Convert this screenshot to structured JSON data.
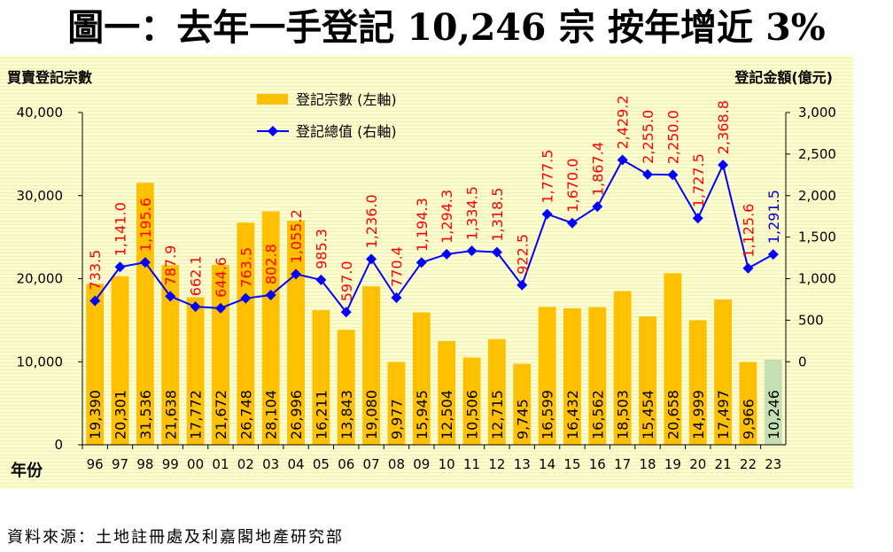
{
  "title": "圖一：去年一手登記 10,246 宗  按年增近 3%",
  "source": "資料來源：土地註冊處及利嘉閣地產研究部",
  "chart_data": {
    "type": "bar",
    "title": "圖一：去年一手登記 10,246 宗  按年增近 3%",
    "ylabel": "買賣登記宗數",
    "y2label": "登記金額(億元)",
    "xlabel": "年份",
    "categories": [
      "96",
      "97",
      "98",
      "99",
      "00",
      "01",
      "02",
      "03",
      "04",
      "05",
      "06",
      "07",
      "08",
      "09",
      "10",
      "11",
      "12",
      "13",
      "14",
      "15",
      "16",
      "17",
      "18",
      "19",
      "20",
      "21",
      "22",
      "23"
    ],
    "ylim": [
      0,
      40000
    ],
    "y2lim": [
      -1000,
      3000
    ],
    "yticks": [
      "0",
      "10,000",
      "20,000",
      "30,000",
      "40,000"
    ],
    "y2ticks": [
      "0",
      "500",
      "1,000",
      "1,500",
      "2,000",
      "2,500",
      "3,000"
    ],
    "legend_position": "top-center",
    "series": [
      {
        "name": "登記宗數 (左軸)",
        "axis": "left",
        "kind": "bar",
        "color": "#ffc000",
        "highlight_color": "#c6dfb2",
        "values": [
          19390,
          20301,
          31536,
          21638,
          17772,
          21672,
          26748,
          28104,
          26996,
          16211,
          13843,
          19080,
          9977,
          15945,
          12504,
          10506,
          12715,
          9745,
          16599,
          16432,
          16562,
          18503,
          15454,
          20658,
          14999,
          17497,
          9966,
          10246
        ],
        "labels": [
          "19,390",
          "20,301",
          "31,536",
          "21,638",
          "17,772",
          "21,672",
          "26,748",
          "28,104",
          "26,996",
          "16,211",
          "13,843",
          "19,080",
          "9,977",
          "15,945",
          "12,504",
          "10,506",
          "12,715",
          "9,745",
          "16,599",
          "16,432",
          "16,562",
          "18,503",
          "15,454",
          "20,658",
          "14,999",
          "17,497",
          "9,966",
          "10,246"
        ]
      },
      {
        "name": "登記總值 (右軸)",
        "axis": "right",
        "kind": "line",
        "color": "#0000ff",
        "label_color": "#ff0000",
        "last_label_color": "#0000cc",
        "values": [
          733.5,
          1141.0,
          1195.6,
          787.9,
          662.1,
          644.6,
          763.5,
          802.8,
          1055.2,
          985.3,
          597.0,
          1236.0,
          770.4,
          1194.3,
          1294.3,
          1334.5,
          1318.5,
          922.5,
          1777.5,
          1670.0,
          1867.4,
          2429.2,
          2255.0,
          2250.0,
          1727.5,
          2368.8,
          1125.6,
          1291.5
        ],
        "labels": [
          "733.5",
          "1,141.0",
          "1,195.6",
          "787.9",
          "662.1",
          "644.6",
          "763.5",
          "802.8",
          "1,055.2",
          "985.3",
          "597.0",
          "1,236.0",
          "770.4",
          "1,194.3",
          "1,294.3",
          "1,334.5",
          "1,318.5",
          "922.5",
          "1,777.5",
          "1,670.0",
          "1,867.4",
          "2,429.2",
          "2,255.0",
          "2,250.0",
          "1,727.5",
          "2,368.8",
          "1,125.6",
          "1,291.5"
        ]
      }
    ]
  }
}
